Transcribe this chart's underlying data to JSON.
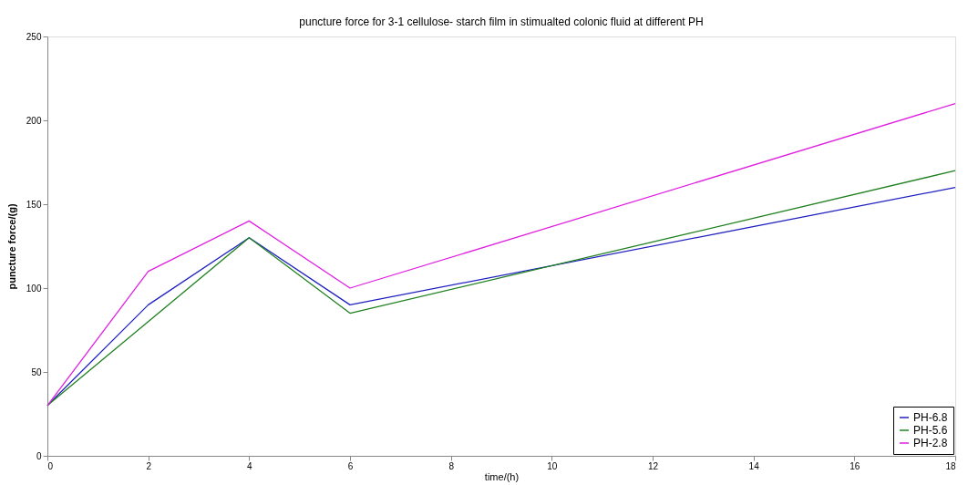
{
  "chart_data": {
    "type": "line",
    "title": "puncture force for 3-1 cellulose- starch film in stimualted colonic fluid at different PH",
    "xlabel": "time/(h)",
    "ylabel": "puncture force/(g)",
    "x": [
      0,
      2,
      4,
      6,
      18
    ],
    "series": [
      {
        "name": "PH-6.8",
        "color": "#2020c0",
        "values": [
          30,
          90,
          130,
          90,
          160
        ]
      },
      {
        "name": "PH-5.6",
        "color": "#208020",
        "values": [
          30,
          80,
          130,
          85,
          170
        ]
      },
      {
        "name": "PH-2.8",
        "color": "#e020e0",
        "values": [
          30,
          110,
          140,
          100,
          210
        ]
      }
    ],
    "xlim": [
      0,
      18
    ],
    "xticks": [
      0,
      2,
      4,
      6,
      8,
      10,
      12,
      14,
      16,
      18
    ],
    "ylim": [
      0,
      250
    ],
    "yticks": [
      0,
      50,
      100,
      150,
      200,
      250
    ],
    "grid": false,
    "legend": "bottom right",
    "marker": "none",
    "line_style": "solid"
  }
}
